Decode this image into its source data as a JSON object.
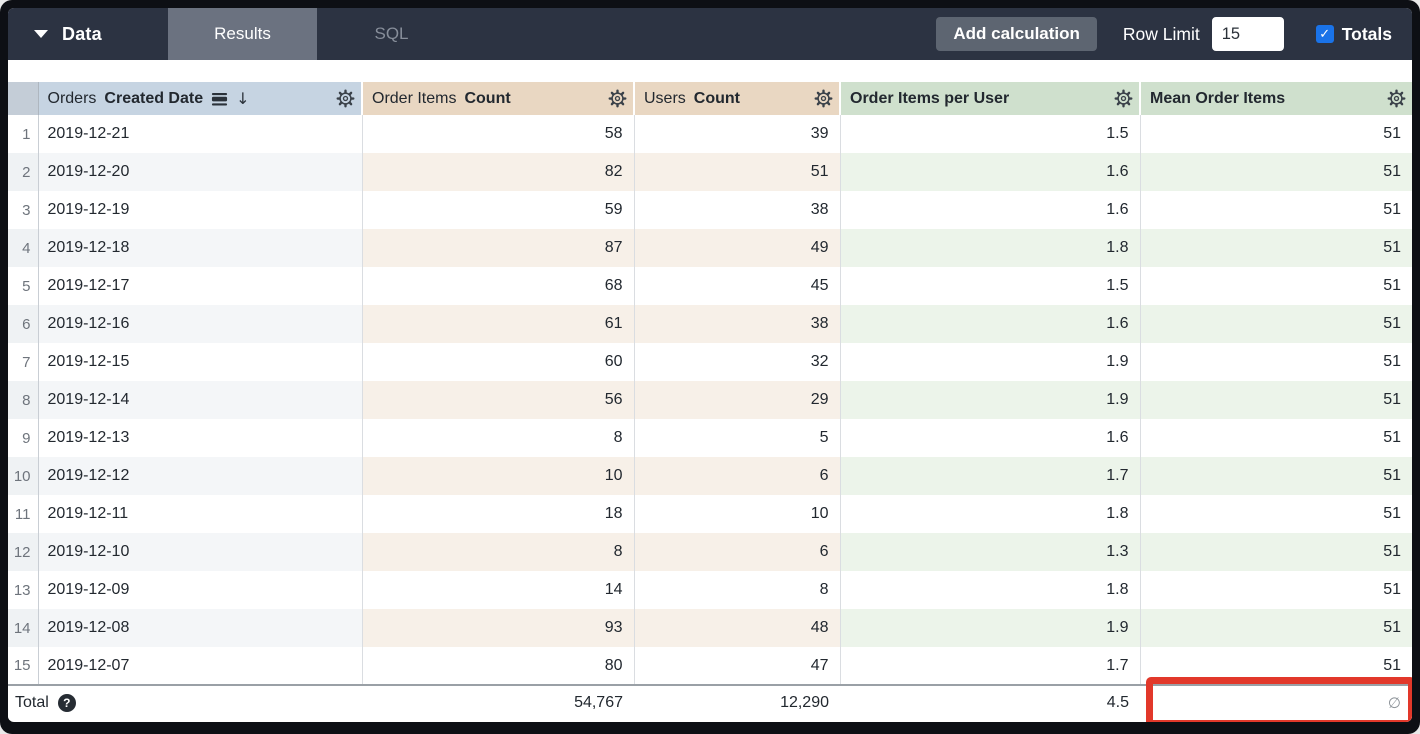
{
  "toolbar": {
    "data_label": "Data",
    "tabs": [
      {
        "label": "Results",
        "active": true
      },
      {
        "label": "SQL",
        "active": false
      }
    ],
    "add_calculation_label": "Add calculation",
    "row_limit_label": "Row Limit",
    "row_limit_value": "15",
    "totals_label": "Totals",
    "totals_checked": true
  },
  "icons": {
    "caret": "caret-down-icon",
    "check_glyph": "✓",
    "arrow_down_glyph": "↓",
    "help_glyph": "?",
    "null_glyph": "∅"
  },
  "table": {
    "columns": {
      "date": {
        "regular": "Orders",
        "bold": "Created Date",
        "type": "dimension",
        "sorted": "desc"
      },
      "order_items_count": {
        "regular": "Order Items",
        "bold": "Count",
        "type": "measure"
      },
      "users_count": {
        "regular": "Users",
        "bold": "Count",
        "type": "measure"
      },
      "order_items_per_user": {
        "regular": "",
        "bold": "Order Items per User",
        "type": "table_calculation"
      },
      "mean_order_items": {
        "regular": "",
        "bold": "Mean Order Items",
        "type": "table_calculation"
      }
    },
    "rows": [
      {
        "n": "1",
        "date": "2019-12-21",
        "order_items": "58",
        "users": "39",
        "per_user": "1.5",
        "mean": "51"
      },
      {
        "n": "2",
        "date": "2019-12-20",
        "order_items": "82",
        "users": "51",
        "per_user": "1.6",
        "mean": "51"
      },
      {
        "n": "3",
        "date": "2019-12-19",
        "order_items": "59",
        "users": "38",
        "per_user": "1.6",
        "mean": "51"
      },
      {
        "n": "4",
        "date": "2019-12-18",
        "order_items": "87",
        "users": "49",
        "per_user": "1.8",
        "mean": "51"
      },
      {
        "n": "5",
        "date": "2019-12-17",
        "order_items": "68",
        "users": "45",
        "per_user": "1.5",
        "mean": "51"
      },
      {
        "n": "6",
        "date": "2019-12-16",
        "order_items": "61",
        "users": "38",
        "per_user": "1.6",
        "mean": "51"
      },
      {
        "n": "7",
        "date": "2019-12-15",
        "order_items": "60",
        "users": "32",
        "per_user": "1.9",
        "mean": "51"
      },
      {
        "n": "8",
        "date": "2019-12-14",
        "order_items": "56",
        "users": "29",
        "per_user": "1.9",
        "mean": "51"
      },
      {
        "n": "9",
        "date": "2019-12-13",
        "order_items": "8",
        "users": "5",
        "per_user": "1.6",
        "mean": "51"
      },
      {
        "n": "10",
        "date": "2019-12-12",
        "order_items": "10",
        "users": "6",
        "per_user": "1.7",
        "mean": "51"
      },
      {
        "n": "11",
        "date": "2019-12-11",
        "order_items": "18",
        "users": "10",
        "per_user": "1.8",
        "mean": "51"
      },
      {
        "n": "12",
        "date": "2019-12-10",
        "order_items": "8",
        "users": "6",
        "per_user": "1.3",
        "mean": "51"
      },
      {
        "n": "13",
        "date": "2019-12-09",
        "order_items": "14",
        "users": "8",
        "per_user": "1.8",
        "mean": "51"
      },
      {
        "n": "14",
        "date": "2019-12-08",
        "order_items": "93",
        "users": "48",
        "per_user": "1.9",
        "mean": "51"
      },
      {
        "n": "15",
        "date": "2019-12-07",
        "order_items": "80",
        "users": "47",
        "per_user": "1.7",
        "mean": "51"
      }
    ],
    "total": {
      "label": "Total",
      "order_items": "54,767",
      "users": "12,290",
      "per_user": "4.5",
      "mean_symbol": "∅"
    }
  },
  "colors": {
    "toolbar_bg": "#2c3342",
    "active_tab_bg": "#6b7280",
    "checkbox_blue": "#1a73e8",
    "dimension_header_bg": "#c6d4e2",
    "measure_header_bg": "#e9d7c2",
    "calc_header_bg": "#cfe0cd",
    "annotation_red": "#e2382a"
  },
  "annotation": {
    "type": "highlight-box",
    "target": "total-mean-order-items-cell"
  }
}
